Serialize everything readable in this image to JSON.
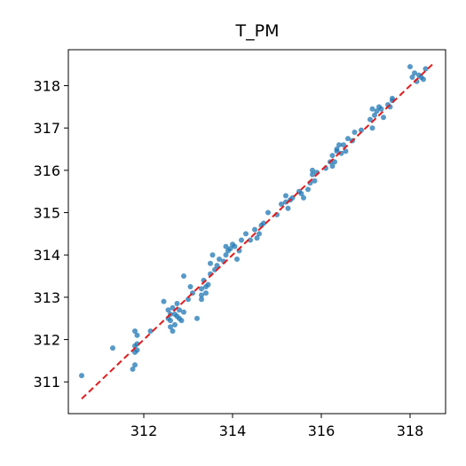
{
  "chart_data": {
    "type": "scatter",
    "title": "T_PM",
    "xlabel": "",
    "ylabel": "",
    "xlim": [
      310.3,
      318.8
    ],
    "ylim": [
      310.25,
      318.85
    ],
    "xticks": [
      312,
      314,
      316,
      318
    ],
    "yticks": [
      311,
      312,
      313,
      314,
      315,
      316,
      317,
      318
    ],
    "grid": false,
    "legend": "none",
    "colors": {
      "points": "#1f77b4",
      "reference_line": "#e41a1c",
      "axes": "#000000"
    },
    "reference_line": {
      "style": "dashed",
      "x": [
        310.6,
        318.5
      ],
      "y": [
        310.6,
        318.5
      ]
    },
    "series": [
      {
        "x": [
          310.6,
          311.3,
          311.75,
          311.8,
          311.8,
          311.85,
          311.8,
          311.85,
          311.8,
          311.85,
          312.15,
          312.45,
          312.55,
          312.55,
          312.6,
          312.6,
          312.6,
          312.65,
          312.65,
          312.7,
          312.7,
          312.75,
          312.75,
          312.8,
          312.8,
          312.85,
          312.9,
          312.9,
          313.0,
          313.05,
          313.1,
          313.2,
          313.3,
          313.3,
          313.3,
          313.35,
          313.4,
          313.4,
          313.45,
          313.5,
          313.5,
          313.55,
          313.6,
          313.65,
          313.7,
          313.8,
          313.85,
          313.85,
          313.9,
          313.95,
          314.0,
          314.05,
          314.1,
          314.15,
          314.2,
          314.3,
          314.4,
          314.5,
          314.55,
          314.6,
          314.65,
          314.7,
          314.8,
          315.0,
          315.1,
          315.2,
          315.2,
          315.25,
          315.3,
          315.35,
          315.5,
          315.55,
          315.6,
          315.7,
          315.75,
          315.8,
          315.8,
          315.85,
          315.9,
          316.1,
          316.2,
          316.25,
          316.25,
          316.3,
          316.35,
          316.35,
          316.4,
          316.45,
          316.5,
          316.55,
          316.6,
          316.7,
          316.75,
          316.9,
          317.1,
          317.15,
          317.15,
          317.2,
          317.25,
          317.3,
          317.35,
          317.4,
          317.5,
          317.55,
          317.6,
          317.6,
          318.0,
          318.05,
          318.1,
          318.15,
          318.2,
          318.25,
          318.3,
          318.35
        ],
        "y": [
          311.15,
          311.8,
          311.3,
          311.4,
          311.7,
          311.9,
          312.2,
          312.1,
          311.85,
          311.75,
          312.2,
          312.9,
          312.5,
          312.7,
          312.6,
          312.3,
          312.45,
          312.2,
          312.75,
          312.35,
          312.6,
          312.55,
          312.85,
          312.7,
          312.5,
          312.45,
          312.65,
          313.5,
          312.95,
          313.25,
          313.1,
          312.5,
          313.05,
          313.2,
          312.95,
          313.4,
          313.25,
          313.1,
          313.3,
          313.55,
          313.8,
          314.0,
          313.65,
          313.75,
          313.9,
          313.85,
          314.2,
          314.0,
          314.1,
          314.15,
          314.25,
          314.2,
          313.9,
          314.1,
          314.35,
          314.5,
          314.35,
          314.6,
          314.4,
          314.5,
          314.7,
          314.75,
          315.0,
          314.95,
          315.2,
          315.4,
          315.25,
          315.1,
          315.3,
          315.35,
          315.5,
          315.45,
          315.35,
          315.55,
          315.7,
          316.0,
          315.9,
          315.75,
          315.95,
          316.05,
          316.2,
          316.35,
          316.1,
          316.2,
          316.5,
          316.45,
          316.6,
          316.4,
          316.6,
          316.45,
          316.75,
          316.7,
          316.9,
          316.95,
          317.2,
          317.0,
          317.45,
          317.3,
          317.4,
          317.5,
          317.45,
          317.25,
          317.55,
          317.5,
          317.7,
          317.65,
          318.45,
          318.2,
          318.3,
          318.1,
          318.25,
          318.2,
          318.15,
          318.4
        ]
      }
    ]
  }
}
